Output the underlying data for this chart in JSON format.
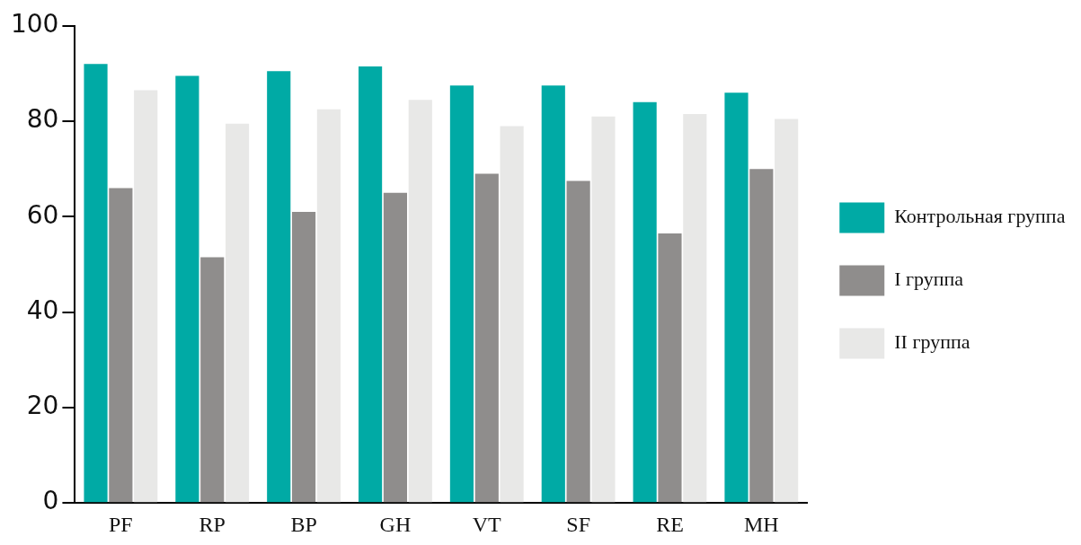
{
  "chart_data": {
    "type": "bar",
    "categories": [
      "PF",
      "RP",
      "BP",
      "GH",
      "VT",
      "SF",
      "RE",
      "MH"
    ],
    "series": [
      {
        "name": "Контрольная группа",
        "color": "#00aaa5",
        "values": [
          92,
          89.5,
          90.5,
          91.5,
          87.5,
          87.5,
          84,
          86
        ]
      },
      {
        "name": "I группа",
        "color": "#8f8d8c",
        "values": [
          66,
          51.5,
          61,
          65,
          69,
          67.5,
          56.5,
          70
        ]
      },
      {
        "name": "II группа",
        "color": "#e8e8e7",
        "values": [
          86.5,
          79.5,
          82.5,
          84.5,
          79,
          81,
          81.5,
          80.5
        ]
      }
    ],
    "ylim": [
      0,
      100
    ],
    "yticks": [
      0,
      20,
      40,
      60,
      80,
      100
    ],
    "grid": false,
    "legend": "right"
  }
}
